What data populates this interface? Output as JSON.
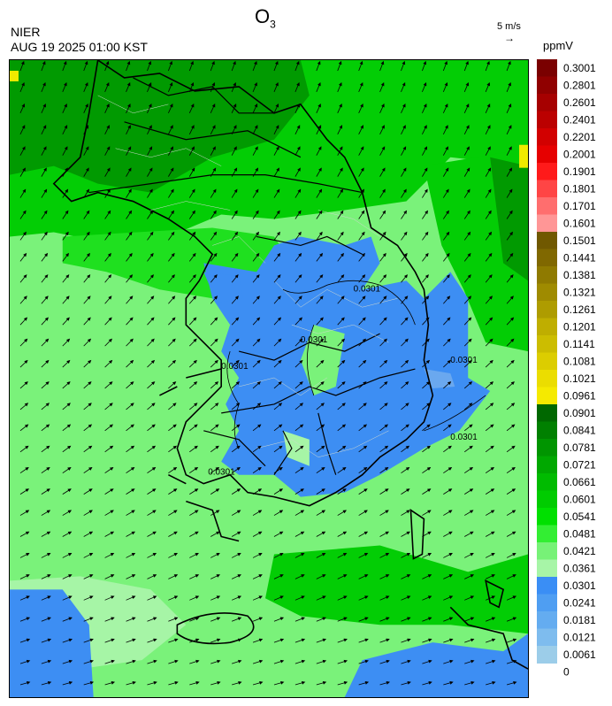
{
  "header": {
    "title_main": "O",
    "title_sub": "3",
    "agency": "NIER",
    "timestamp": "AUG 19 2025 01:00 KST",
    "wind_scale_label": "5 m/s",
    "unit_label": "ppmV"
  },
  "contour_labels": [
    "0.0301",
    "0.0301",
    "0.0301",
    "0.0301",
    "0.0301",
    "0.0301"
  ],
  "legend": {
    "labels": [
      "0.3001",
      "0.2801",
      "0.2601",
      "0.2401",
      "0.2201",
      "0.2001",
      "0.1901",
      "0.1801",
      "0.1701",
      "0.1601",
      "0.1501",
      "0.1441",
      "0.1381",
      "0.1321",
      "0.1261",
      "0.1201",
      "0.1141",
      "0.1081",
      "0.1021",
      "0.0961",
      "0.0901",
      "0.0841",
      "0.0781",
      "0.0721",
      "0.0661",
      "0.0601",
      "0.0541",
      "0.0481",
      "0.0421",
      "0.0361",
      "0.0301",
      "0.0241",
      "0.0181",
      "0.0121",
      "0.0061",
      "0"
    ],
    "colors": [
      "#7a0000",
      "#900000",
      "#a60000",
      "#bb0000",
      "#d20000",
      "#e60000",
      "#ff1a1a",
      "#ff4545",
      "#ff6e6e",
      "#ff9696",
      "#705800",
      "#806800",
      "#8f7a00",
      "#9f8b00",
      "#ae9c00",
      "#bfae00",
      "#ccbd00",
      "#dccd00",
      "#ebdd00",
      "#f5ea00",
      "#006800",
      "#008000",
      "#009500",
      "#00a800",
      "#00bb00",
      "#00cc00",
      "#00e000",
      "#33ee33",
      "#77f277",
      "#a7f5a7",
      "#3a8ef5",
      "#4f9ef2",
      "#64acf0",
      "#7ebcee",
      "#9ccde9"
    ]
  },
  "colors": {
    "dark_green": "#019a01",
    "green": "#03cd05",
    "bright_green": "#1fe01f",
    "light_green": "#7af27a",
    "pale_green": "#a6f5a6",
    "blue": "#3d8ef3",
    "light_blue": "#6aa8ef",
    "yellow": "#f0ea00"
  }
}
